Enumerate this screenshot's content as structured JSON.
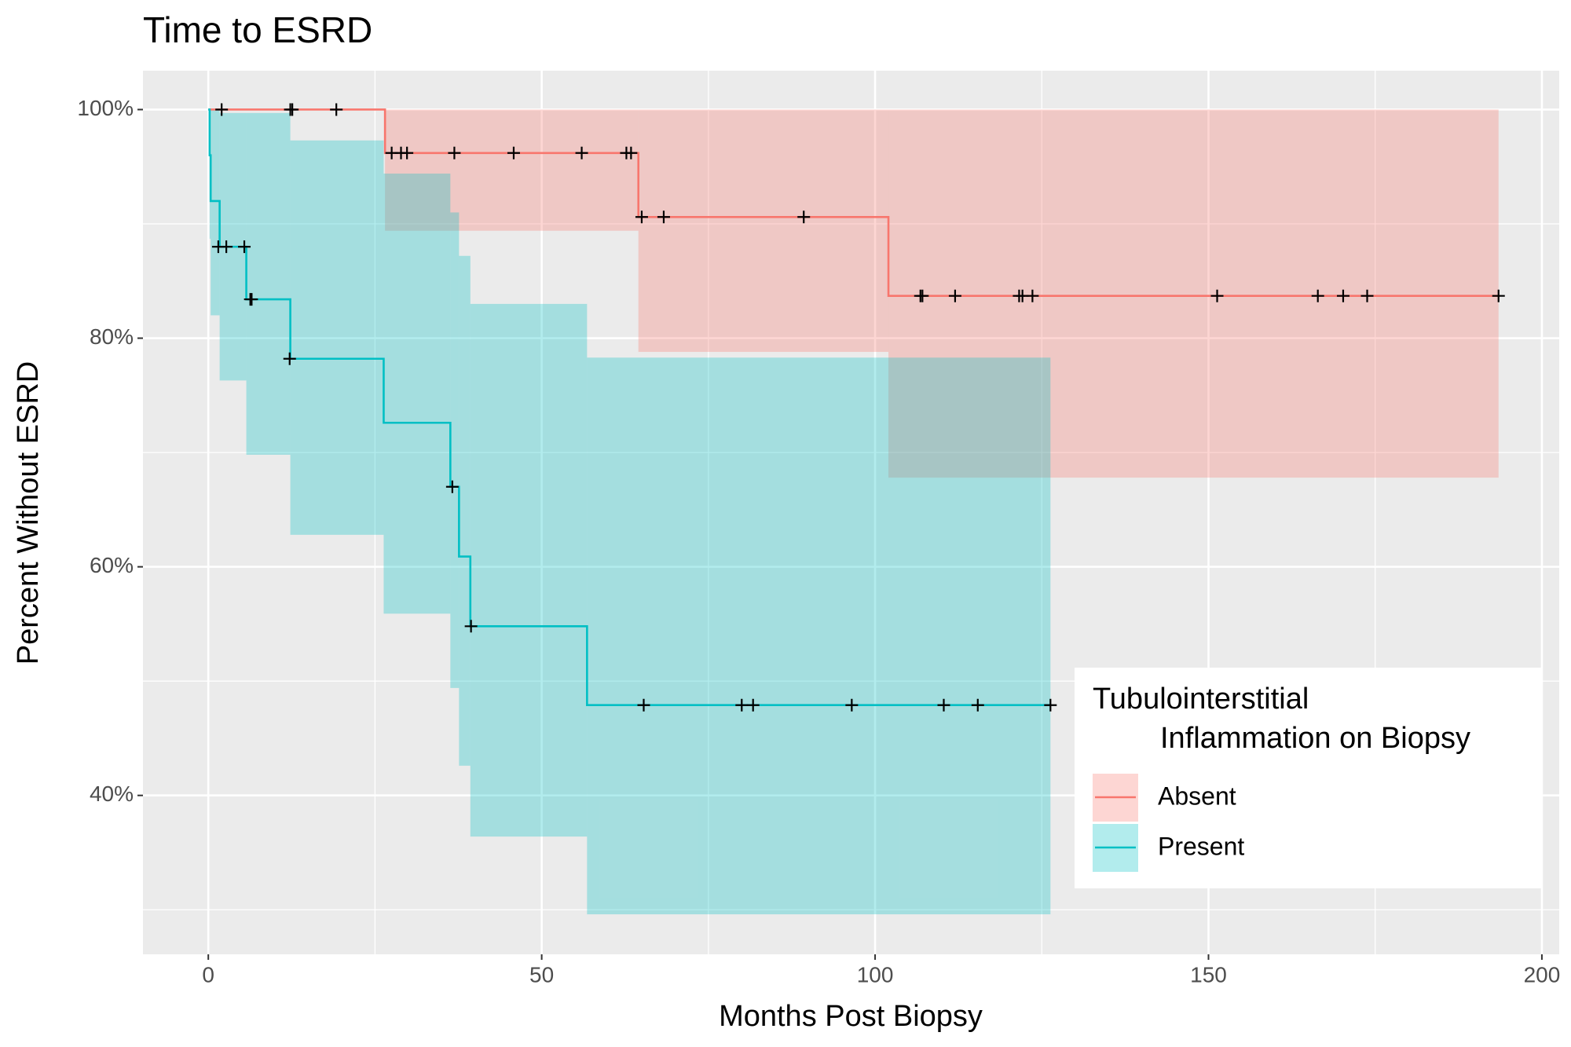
{
  "chart_data": {
    "type": "survival",
    "title": "Time to ESRD",
    "x_label": "Months Post Biopsy",
    "y_label": "Percent Without ESRD",
    "legend_title": [
      "Tubulointerstitial",
      "Inflammation on Biopsy"
    ],
    "xlim": [
      -9.8,
      202.6
    ],
    "ylim": [
      26.1,
      103.4
    ],
    "xticks": [
      0,
      50,
      100,
      150,
      200
    ],
    "yticks": [
      {
        "value": 40,
        "label": "40%"
      },
      {
        "value": 60,
        "label": "60%"
      },
      {
        "value": 80,
        "label": "80%"
      },
      {
        "value": 100,
        "label": "100%"
      }
    ],
    "grid": true,
    "series": [
      {
        "name": "Absent",
        "color": "#F8766D",
        "x": [
          0,
          26.5,
          64.5,
          102
        ],
        "end": 193.5,
        "values": [
          100,
          96.2,
          90.6,
          83.7
        ],
        "lower": [
          100,
          89.4,
          78.8,
          67.8
        ],
        "upper": [
          100,
          100,
          100,
          100
        ],
        "censored": {
          "x": [
            2,
            12.3,
            12.6,
            19.2,
            27.5,
            28.9,
            29.8,
            36.9,
            45.8,
            56,
            62.7,
            63.4,
            65,
            68.3,
            89.3,
            106.8,
            107.1,
            112,
            121.6,
            122.1,
            123.6,
            151.3,
            166.4,
            170.2,
            173.8,
            193.5
          ],
          "values": [
            100,
            100,
            100,
            100,
            96.2,
            96.2,
            96.2,
            96.2,
            96.2,
            96.2,
            96.2,
            96.2,
            90.6,
            90.6,
            90.6,
            83.7,
            83.7,
            83.7,
            83.7,
            83.7,
            83.7,
            83.7,
            83.7,
            83.7,
            83.7,
            83.7
          ]
        }
      },
      {
        "name": "Present",
        "color": "#00BFC4",
        "x": [
          0,
          0.2,
          0.35,
          1.7,
          5.7,
          12.3,
          26.3,
          36.3,
          37.6,
          39.3,
          56.8
        ],
        "end": 126.3,
        "values": [
          100,
          96,
          92,
          88,
          83.4,
          78.2,
          72.6,
          67,
          60.9,
          54.8,
          47.9
        ],
        "lower": [
          100,
          88.7,
          82,
          76.3,
          69.8,
          62.8,
          55.9,
          49.4,
          42.6,
          36.4,
          29.6
        ],
        "upper": [
          100,
          100,
          100,
          99.7,
          99.7,
          97.3,
          94.4,
          91,
          87.2,
          83,
          78.3
        ],
        "censored": {
          "x": [
            1.5,
            2.7,
            5.4,
            6.3,
            6.5,
            12.2,
            36.6,
            39.4,
            65.3,
            80,
            81.7,
            96.5,
            110.3,
            115.4,
            126.3
          ],
          "values": [
            88,
            88,
            88,
            83.4,
            83.4,
            78.2,
            67,
            54.8,
            47.9,
            47.9,
            47.9,
            47.9,
            47.9,
            47.9,
            47.9
          ]
        }
      }
    ]
  }
}
